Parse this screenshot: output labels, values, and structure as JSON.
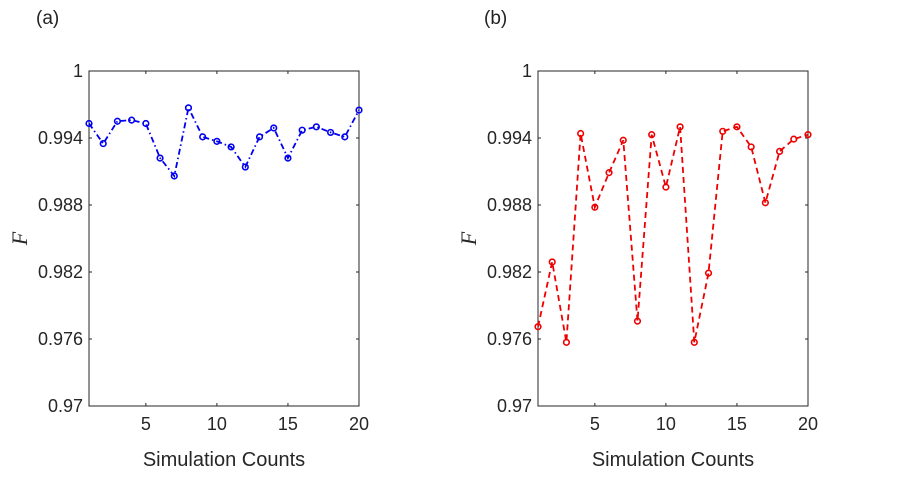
{
  "chart_data": [
    {
      "panel_label": "(a)",
      "type": "line",
      "line_style": "dash-dot",
      "marker": "circle",
      "color": "#0000ee",
      "xlabel": "Simulation Counts",
      "ylabel": "F",
      "xlim": [
        1,
        20
      ],
      "ylim": [
        0.97,
        1
      ],
      "xticks": [
        5,
        10,
        15,
        20
      ],
      "xtick_labels": [
        "5",
        "10",
        "15",
        "20"
      ],
      "yticks": [
        0.97,
        0.976,
        0.982,
        0.988,
        0.994,
        1
      ],
      "ytick_labels": [
        "0.97",
        "0.976",
        "0.982",
        "0.988",
        "0.994",
        "1"
      ],
      "x": [
        1,
        2,
        3,
        4,
        5,
        6,
        7,
        8,
        9,
        10,
        11,
        12,
        13,
        14,
        15,
        16,
        17,
        18,
        19,
        20
      ],
      "y": [
        0.9953,
        0.9935,
        0.9955,
        0.9956,
        0.9953,
        0.9922,
        0.9906,
        0.9967,
        0.9941,
        0.9937,
        0.9932,
        0.9914,
        0.9941,
        0.9949,
        0.9922,
        0.9947,
        0.995,
        0.9945,
        0.9941,
        0.9965
      ]
    },
    {
      "panel_label": "(b)",
      "type": "line",
      "line_style": "dashed",
      "marker": "circle",
      "color": "#ee0000",
      "xlabel": "Simulation Counts",
      "ylabel": "F",
      "xlim": [
        1,
        20
      ],
      "ylim": [
        0.97,
        1
      ],
      "xticks": [
        5,
        10,
        15,
        20
      ],
      "xtick_labels": [
        "5",
        "10",
        "15",
        "20"
      ],
      "yticks": [
        0.97,
        0.976,
        0.982,
        0.988,
        0.994,
        1
      ],
      "ytick_labels": [
        "0.97",
        "0.976",
        "0.982",
        "0.988",
        "0.994",
        "1"
      ],
      "x": [
        1,
        2,
        3,
        4,
        5,
        6,
        7,
        8,
        9,
        10,
        11,
        12,
        13,
        14,
        15,
        16,
        17,
        18,
        19,
        20
      ],
      "y": [
        0.9771,
        0.9829,
        0.9757,
        0.9944,
        0.9878,
        0.9909,
        0.9938,
        0.9776,
        0.9943,
        0.9896,
        0.995,
        0.9757,
        0.9819,
        0.9946,
        0.995,
        0.9932,
        0.9882,
        0.9928,
        0.9939,
        0.9943
      ]
    }
  ]
}
